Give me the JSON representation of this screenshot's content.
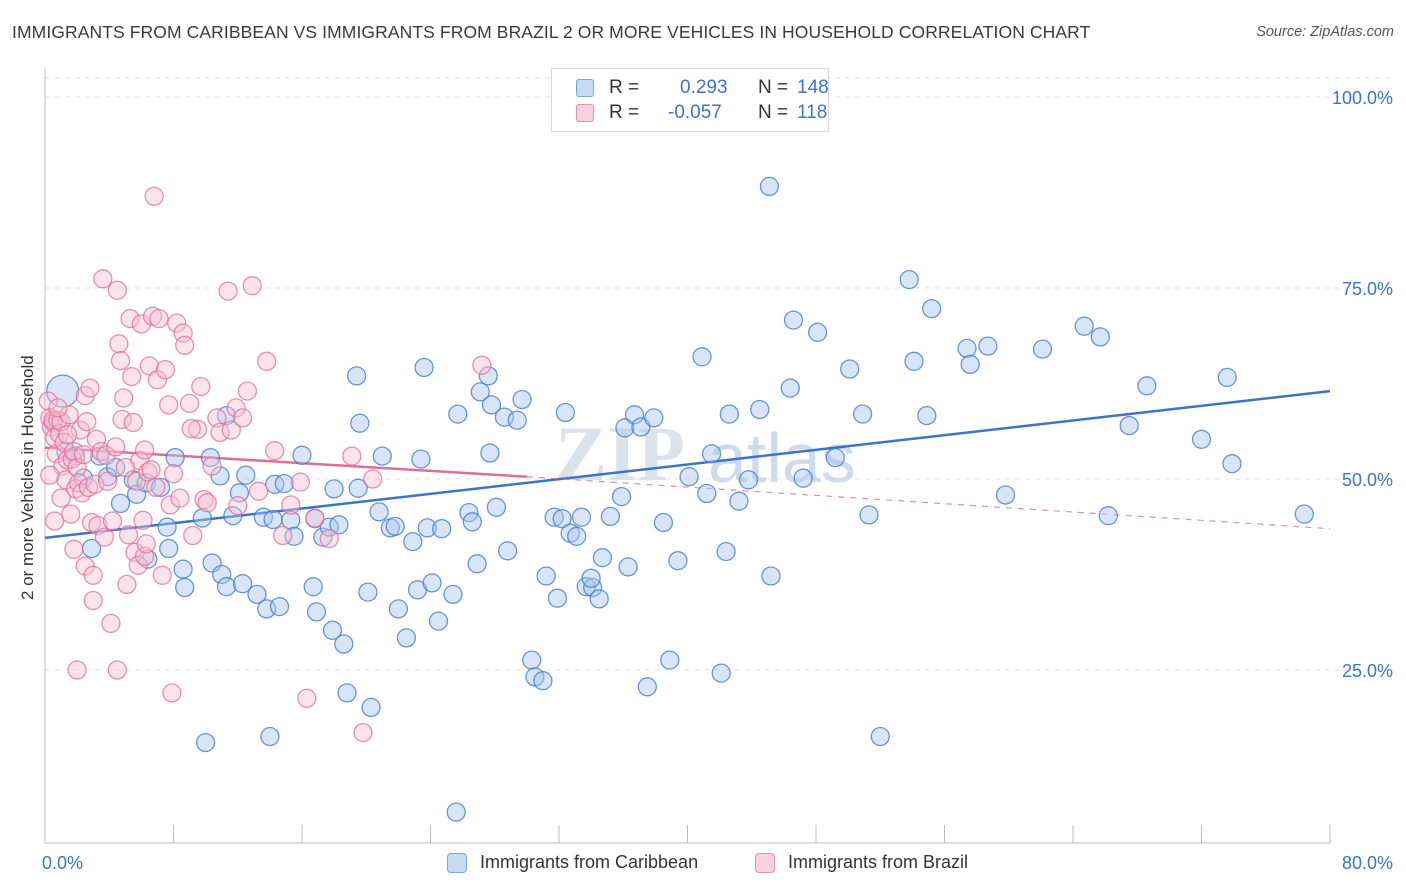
{
  "header": {
    "title": "IMMIGRANTS FROM CARIBBEAN VS IMMIGRANTS FROM BRAZIL 2 OR MORE VEHICLES IN HOUSEHOLD CORRELATION CHART",
    "source": "Source: ZipAtlas.com"
  },
  "legend": {
    "rows": [
      {
        "r_label": "R =",
        "r_value": "0.293",
        "n_label": "N =",
        "n_value": "148",
        "color": "#7aa6e0",
        "fill": "#c8dbf5"
      },
      {
        "r_label": "R =",
        "r_value": "-0.057",
        "n_label": "N =",
        "n_value": "118",
        "color": "#e890b0",
        "fill": "#f8d0df"
      }
    ]
  },
  "watermark": {
    "zip": "ZIP",
    "atlas": "atlas"
  },
  "chart_data": {
    "type": "scatter",
    "title": "IMMIGRANTS FROM CARIBBEAN VS IMMIGRANTS FROM BRAZIL 2 OR MORE VEHICLES IN HOUSEHOLD CORRELATION CHART",
    "xlabel": "",
    "ylabel": "2 or more Vehicles in Household",
    "xlim": [
      0,
      80
    ],
    "ylim": [
      0,
      105
    ],
    "x_tick_labels": [
      "0.0%",
      "80.0%"
    ],
    "y_ticks": [
      25,
      50,
      75,
      100
    ],
    "y_tick_labels": [
      "25.0%",
      "50.0%",
      "75.0%",
      "100.0%"
    ],
    "grid": true,
    "legend_position": "top-center",
    "series": [
      {
        "name": "Immigrants from Caribbean",
        "color": "#3b74c8",
        "fill": "#a9c6ee",
        "trend": {
          "x": [
            0,
            80
          ],
          "y": [
            42.3,
            61.5
          ],
          "style": "solid"
        },
        "points": [
          [
            1.1,
            61.5
          ],
          [
            0.5,
            57.4
          ],
          [
            1.3,
            53.6
          ],
          [
            1.9,
            53.0
          ],
          [
            2.4,
            50.1
          ],
          [
            3.4,
            53.0
          ],
          [
            3.9,
            50.3
          ],
          [
            4.4,
            51.5
          ],
          [
            5.5,
            49.9
          ],
          [
            2.9,
            40.9
          ],
          [
            4.7,
            46.8
          ],
          [
            5.7,
            48.0
          ],
          [
            6.3,
            49.5
          ],
          [
            7.2,
            48.9
          ],
          [
            8.1,
            52.8
          ],
          [
            7.6,
            43.7
          ],
          [
            7.7,
            40.9
          ],
          [
            6.4,
            39.5
          ],
          [
            8.6,
            38.2
          ],
          [
            8.7,
            35.8
          ],
          [
            9.8,
            44.9
          ],
          [
            10.3,
            52.8
          ],
          [
            10.4,
            39.0
          ],
          [
            10.9,
            50.4
          ],
          [
            11.0,
            37.5
          ],
          [
            11.3,
            58.3
          ],
          [
            11.3,
            35.9
          ],
          [
            10.0,
            15.5
          ],
          [
            11.7,
            45.2
          ],
          [
            12.1,
            48.2
          ],
          [
            12.3,
            36.3
          ],
          [
            12.5,
            50.5
          ],
          [
            13.2,
            34.9
          ],
          [
            13.6,
            45.0
          ],
          [
            13.8,
            33.0
          ],
          [
            14.2,
            44.7
          ],
          [
            14.3,
            49.3
          ],
          [
            14.6,
            33.3
          ],
          [
            14.9,
            49.4
          ],
          [
            15.3,
            44.6
          ],
          [
            15.5,
            42.5
          ],
          [
            16.0,
            53.1
          ],
          [
            16.7,
            35.9
          ],
          [
            16.8,
            44.8
          ],
          [
            16.9,
            32.6
          ],
          [
            17.3,
            42.4
          ],
          [
            17.7,
            43.7
          ],
          [
            18.0,
            48.7
          ],
          [
            17.9,
            30.2
          ],
          [
            18.3,
            44.0
          ],
          [
            18.6,
            28.4
          ],
          [
            19.4,
            63.5
          ],
          [
            19.5,
            48.8
          ],
          [
            19.6,
            57.3
          ],
          [
            20.1,
            35.2
          ],
          [
            20.8,
            45.7
          ],
          [
            21.0,
            53.0
          ],
          [
            21.5,
            43.6
          ],
          [
            21.8,
            43.8
          ],
          [
            22.0,
            33.0
          ],
          [
            22.5,
            29.2
          ],
          [
            22.9,
            41.8
          ],
          [
            23.2,
            35.5
          ],
          [
            23.4,
            52.6
          ],
          [
            23.6,
            64.6
          ],
          [
            23.8,
            43.6
          ],
          [
            24.1,
            36.4
          ],
          [
            24.5,
            31.4
          ],
          [
            24.7,
            43.5
          ],
          [
            25.4,
            34.9
          ],
          [
            25.7,
            58.5
          ],
          [
            26.4,
            45.6
          ],
          [
            26.6,
            44.4
          ],
          [
            26.9,
            38.9
          ],
          [
            27.1,
            61.4
          ],
          [
            27.6,
            63.5
          ],
          [
            27.7,
            53.4
          ],
          [
            27.8,
            59.7
          ],
          [
            28.1,
            46.3
          ],
          [
            28.6,
            58.1
          ],
          [
            28.8,
            40.6
          ],
          [
            29.4,
            57.7
          ],
          [
            29.7,
            60.4
          ],
          [
            30.3,
            26.3
          ],
          [
            30.5,
            24.1
          ],
          [
            31.0,
            23.6
          ],
          [
            31.2,
            37.3
          ],
          [
            31.7,
            45.0
          ],
          [
            31.9,
            34.4
          ],
          [
            32.2,
            44.8
          ],
          [
            32.4,
            58.7
          ],
          [
            32.7,
            42.9
          ],
          [
            33.1,
            42.5
          ],
          [
            33.4,
            45.0
          ],
          [
            33.7,
            35.9
          ],
          [
            34.1,
            35.8
          ],
          [
            34.5,
            34.3
          ],
          [
            34.7,
            39.7
          ],
          [
            35.2,
            45.1
          ],
          [
            35.9,
            47.7
          ],
          [
            36.1,
            56.7
          ],
          [
            36.3,
            38.5
          ],
          [
            36.7,
            58.4
          ],
          [
            37.1,
            56.8
          ],
          [
            37.5,
            22.8
          ],
          [
            37.9,
            58.0
          ],
          [
            38.5,
            44.3
          ],
          [
            38.9,
            26.3
          ],
          [
            39.4,
            39.3
          ],
          [
            40.1,
            50.3
          ],
          [
            40.9,
            66.0
          ],
          [
            41.2,
            48.1
          ],
          [
            41.5,
            53.3
          ],
          [
            42.1,
            24.6
          ],
          [
            42.4,
            40.5
          ],
          [
            42.6,
            58.5
          ],
          [
            43.2,
            47.1
          ],
          [
            43.8,
            49.9
          ],
          [
            44.5,
            59.1
          ],
          [
            45.1,
            88.3
          ],
          [
            45.2,
            37.3
          ],
          [
            46.4,
            61.9
          ],
          [
            46.6,
            70.8
          ],
          [
            47.2,
            50.1
          ],
          [
            48.1,
            69.2
          ],
          [
            49.2,
            52.8
          ],
          [
            50.1,
            64.4
          ],
          [
            50.9,
            58.5
          ],
          [
            51.3,
            45.3
          ],
          [
            52.0,
            16.3
          ],
          [
            53.8,
            76.1
          ],
          [
            54.1,
            65.4
          ],
          [
            54.9,
            58.3
          ],
          [
            55.2,
            72.3
          ],
          [
            57.4,
            67.1
          ],
          [
            57.6,
            65.0
          ],
          [
            58.7,
            67.4
          ],
          [
            59.8,
            47.9
          ],
          [
            62.1,
            67.0
          ],
          [
            64.7,
            70.0
          ],
          [
            65.7,
            68.6
          ],
          [
            66.2,
            45.2
          ],
          [
            67.5,
            57.0
          ],
          [
            68.6,
            62.2
          ],
          [
            72.0,
            55.2
          ],
          [
            73.6,
            63.3
          ],
          [
            73.9,
            52.0
          ],
          [
            78.4,
            45.4
          ],
          [
            34.0,
            37.0
          ],
          [
            25.6,
            6.4
          ],
          [
            20.3,
            20.1
          ],
          [
            18.8,
            22.0
          ],
          [
            14.0,
            16.3
          ]
        ]
      },
      {
        "name": "Immigrants from Brazil",
        "color": "#e06c98",
        "fill": "#f5c0d3",
        "trend": {
          "x": [
            0,
            30
          ],
          "y": [
            54.1,
            50.3
          ],
          "style": "solid",
          "extended_x": [
            30,
            80
          ],
          "extended_y": [
            50.3,
            43.5
          ],
          "extended_style": "dashed"
        },
        "points": [
          [
            0.2,
            60.2
          ],
          [
            0.3,
            58.0
          ],
          [
            0.4,
            56.8
          ],
          [
            0.5,
            57.7
          ],
          [
            0.6,
            55.4
          ],
          [
            0.7,
            53.3
          ],
          [
            0.8,
            57.7
          ],
          [
            0.9,
            55.9
          ],
          [
            1.0,
            57.5
          ],
          [
            1.1,
            51.7
          ],
          [
            1.2,
            54.8
          ],
          [
            1.3,
            49.9
          ],
          [
            1.4,
            52.5
          ],
          [
            1.5,
            58.4
          ],
          [
            1.6,
            45.4
          ],
          [
            1.7,
            52.6
          ],
          [
            1.8,
            53.6
          ],
          [
            1.9,
            48.7
          ],
          [
            2.0,
            51.5
          ],
          [
            2.1,
            49.5
          ],
          [
            2.2,
            56.4
          ],
          [
            2.3,
            48.2
          ],
          [
            2.4,
            53.2
          ],
          [
            2.5,
            60.9
          ],
          [
            2.6,
            57.5
          ],
          [
            2.7,
            48.9
          ],
          [
            2.8,
            61.9
          ],
          [
            2.9,
            44.3
          ],
          [
            3.0,
            34.1
          ],
          [
            3.1,
            49.3
          ],
          [
            3.2,
            55.2
          ],
          [
            3.3,
            43.9
          ],
          [
            3.5,
            53.6
          ],
          [
            3.6,
            76.2
          ],
          [
            3.7,
            42.4
          ],
          [
            3.8,
            53.1
          ],
          [
            3.9,
            49.7
          ],
          [
            4.1,
            31.1
          ],
          [
            4.2,
            44.5
          ],
          [
            4.4,
            54.2
          ],
          [
            4.5,
            74.7
          ],
          [
            4.6,
            67.7
          ],
          [
            4.7,
            65.5
          ],
          [
            4.8,
            57.8
          ],
          [
            4.9,
            60.6
          ],
          [
            5.1,
            36.2
          ],
          [
            5.2,
            42.7
          ],
          [
            5.3,
            71.0
          ],
          [
            5.4,
            63.4
          ],
          [
            5.5,
            57.4
          ],
          [
            5.6,
            40.4
          ],
          [
            5.7,
            49.7
          ],
          [
            5.8,
            38.7
          ],
          [
            5.9,
            52.4
          ],
          [
            6.0,
            70.3
          ],
          [
            6.1,
            44.6
          ],
          [
            6.2,
            39.9
          ],
          [
            6.3,
            41.5
          ],
          [
            6.4,
            50.9
          ],
          [
            6.5,
            64.8
          ],
          [
            6.6,
            51.2
          ],
          [
            6.7,
            71.3
          ],
          [
            6.8,
            87.0
          ],
          [
            6.9,
            48.9
          ],
          [
            7.0,
            63.0
          ],
          [
            7.1,
            71.0
          ],
          [
            7.3,
            37.4
          ],
          [
            7.5,
            64.3
          ],
          [
            7.7,
            59.7
          ],
          [
            7.8,
            46.6
          ],
          [
            7.9,
            22.0
          ],
          [
            8.0,
            50.7
          ],
          [
            8.2,
            70.4
          ],
          [
            8.4,
            47.5
          ],
          [
            8.6,
            69.1
          ],
          [
            8.7,
            67.5
          ],
          [
            9.0,
            59.9
          ],
          [
            9.2,
            42.6
          ],
          [
            9.5,
            56.5
          ],
          [
            9.7,
            62.1
          ],
          [
            9.9,
            47.3
          ],
          [
            10.1,
            46.9
          ],
          [
            10.4,
            51.7
          ],
          [
            10.7,
            58.0
          ],
          [
            10.9,
            56.1
          ],
          [
            11.4,
            74.6
          ],
          [
            11.6,
            56.4
          ],
          [
            11.9,
            59.3
          ],
          [
            12.3,
            58.0
          ],
          [
            12.6,
            61.5
          ],
          [
            12.9,
            75.3
          ],
          [
            13.3,
            48.4
          ],
          [
            13.8,
            65.4
          ],
          [
            14.3,
            53.7
          ],
          [
            14.8,
            42.6
          ],
          [
            15.3,
            46.6
          ],
          [
            15.9,
            49.6
          ],
          [
            16.3,
            21.3
          ],
          [
            16.8,
            44.9
          ],
          [
            17.7,
            42.2
          ],
          [
            19.1,
            53.0
          ],
          [
            19.8,
            16.8
          ],
          [
            20.4,
            50.0
          ],
          [
            27.2,
            64.9
          ],
          [
            2.0,
            25.0
          ],
          [
            4.5,
            25.0
          ],
          [
            0.6,
            44.5
          ],
          [
            1.0,
            47.5
          ],
          [
            1.8,
            40.8
          ],
          [
            2.5,
            38.6
          ],
          [
            3.0,
            37.4
          ],
          [
            0.3,
            50.5
          ],
          [
            0.8,
            59.3
          ],
          [
            1.4,
            55.8
          ],
          [
            5.0,
            51.5
          ],
          [
            6.2,
            53.8
          ],
          [
            9.1,
            56.6
          ],
          [
            12.0,
            46.5
          ]
        ]
      }
    ]
  },
  "bottom_legend": [
    {
      "label": "Immigrants from Caribbean",
      "color": "#7aa6e0",
      "fill": "#c8dbf5"
    },
    {
      "label": "Immigrants from Brazil",
      "color": "#e890b0",
      "fill": "#f8d0df"
    }
  ]
}
